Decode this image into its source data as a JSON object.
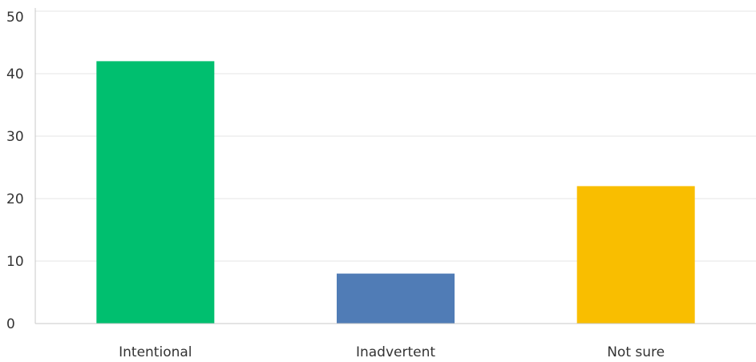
{
  "chart_data": {
    "type": "bar",
    "categories": [
      "Intentional",
      "Inadvertent",
      "Not sure"
    ],
    "values": [
      42,
      8,
      22
    ],
    "colors": [
      "#00BF6F",
      "#507CB6",
      "#F9BE00"
    ],
    "title": "",
    "xlabel": "",
    "ylabel": "",
    "ylim": [
      0,
      50
    ],
    "yticks": [
      "0",
      "10",
      "20",
      "30",
      "40",
      "50"
    ],
    "grid": true,
    "legend": "none"
  }
}
